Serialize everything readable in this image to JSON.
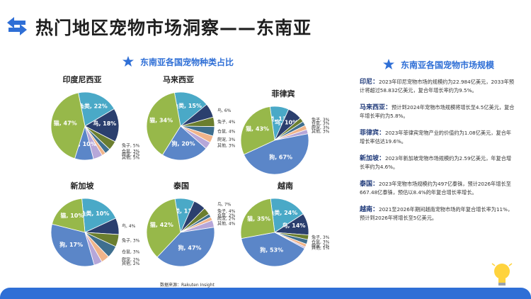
{
  "title": "热门地区宠物市场洞察——东南亚",
  "left_heading": "东南亚各国宠物种类占比",
  "right_heading": "东南亚各国宠物市场规模",
  "source": "数据来源：Rakuten Insight",
  "colors": {
    "fish": "#4aa9c7",
    "bird": "#2b3f6e",
    "rabbit": "#6b7e2f",
    "hamster": "#3f6f8f",
    "reptile": "#f0b48a",
    "other": "#b6a7d9",
    "dog": "#5b86c8",
    "cat": "#97b84a"
  },
  "chart_data": [
    {
      "type": "pie",
      "title": "印度尼西亚",
      "labels": [
        "鱼类",
        "鸟",
        "兔子",
        "仓鼠",
        "爬宠",
        "其他",
        "狗",
        "猫"
      ],
      "values": [
        22,
        18,
        5,
        3,
        2,
        5,
        10,
        47
      ]
    },
    {
      "type": "pie",
      "title": "马来西亚",
      "labels": [
        "鱼类",
        "鸟",
        "兔子",
        "仓鼠",
        "爬宠",
        "其他",
        "狗",
        "猫"
      ],
      "values": [
        15,
        6,
        4,
        4,
        3,
        3,
        20,
        34
      ]
    },
    {
      "type": "pie",
      "title": "菲律宾",
      "labels": [
        "鱼类",
        "鸟",
        "兔子",
        "仓鼠",
        "爬宠",
        "其他",
        "狗",
        "猫"
      ],
      "values": [
        13,
        10,
        3,
        3,
        3,
        3,
        67,
        43
      ]
    },
    {
      "type": "pie",
      "title": "新加坡",
      "labels": [
        "鱼类",
        "鸟",
        "兔子",
        "仓鼠",
        "爬宠",
        "其他",
        "狗",
        "猫"
      ],
      "values": [
        10,
        4,
        3,
        3,
        2,
        2,
        17,
        10
      ]
    },
    {
      "type": "pie",
      "title": "泰国",
      "labels": [
        "鱼类",
        "鸟",
        "兔子",
        "仓鼠",
        "爬宠",
        "其他",
        "狗",
        "猫"
      ],
      "values": [
        11,
        7,
        4,
        2,
        2,
        4,
        47,
        42
      ]
    },
    {
      "type": "pie",
      "title": "越南",
      "labels": [
        "鱼类",
        "鸟",
        "兔子",
        "仓鼠",
        "爬宠",
        "其他",
        "狗",
        "猫"
      ],
      "values": [
        24,
        14,
        3,
        3,
        2,
        1,
        53,
        35
      ]
    }
  ],
  "markets": [
    {
      "name": "印尼：",
      "text": "2023年印尼宠物市场的规模约为22.984亿美元，2033年预计将超过58.832亿美元，复合年增长率约为9.5%。"
    },
    {
      "name": "马来西亚：",
      "text": "预计到2024年宠物市场规模将增长至4.5亿美元，复合年增长率约为5.8%。"
    },
    {
      "name": "菲律宾：",
      "text": "2023年菲律宾宠物产业的价值约为1.08亿美元，复合年增长率估达19.6%。"
    },
    {
      "name": "新加坡：",
      "text": "2023年新加坡宠物市场规模约为2.59亿美元，年复合增长率约为4.6%。"
    },
    {
      "name": "泰国：",
      "text": "2023年宠物市场规模约为497亿泰铢，预计2026年增长至667.48亿泰铢，预估以8.4%的年复合增长率增长。"
    },
    {
      "name": "越南：",
      "text": "2021至2026年期间越南宠物市场的年复合增长率为11%，预计到2026年将增长至5亿美元。"
    }
  ]
}
